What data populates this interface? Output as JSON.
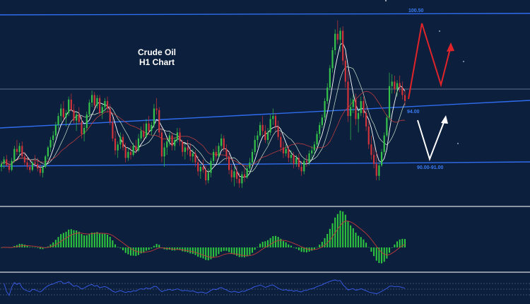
{
  "colors": {
    "background": "#0c1f3c",
    "bull_candle": "#35c24a",
    "bear_candle": "#d0343a",
    "trendline": "#2f6df0",
    "level_label": "#3a7cf5",
    "projection_bull": "#e0242a",
    "projection_bear": "#ffffff",
    "histogram": "#2ec93f",
    "signal_line": "#c23a3a",
    "rsi_line": "#3a5df0",
    "panel_divider": "#8a94a3",
    "title": "#ffffff"
  },
  "chart_data": {
    "type": "candlestick",
    "title": "Crude Oil",
    "subtitle": "H1 Chart",
    "price_levels": [
      {
        "name": "resistance",
        "label": "100.50",
        "value": 100.5
      },
      {
        "name": "trendline",
        "label": "94.00",
        "value": 94.0
      },
      {
        "name": "support",
        "label": "90.00-91.00",
        "value": 90.5
      }
    ],
    "projections": [
      {
        "name": "bullish-path",
        "color": "red"
      },
      {
        "name": "bearish-path",
        "color": "white"
      }
    ],
    "indicators": [
      {
        "type": "histogram",
        "name": "MACD"
      },
      {
        "type": "line",
        "name": "RSI"
      }
    ],
    "candles": [
      [
        91.2,
        91.6,
        90.9,
        91.4
      ],
      [
        91.4,
        91.9,
        91.1,
        91.7
      ],
      [
        91.7,
        92.0,
        91.2,
        91.3
      ],
      [
        91.3,
        91.6,
        90.8,
        91.0
      ],
      [
        91.0,
        91.8,
        90.9,
        91.6
      ],
      [
        91.6,
        92.6,
        91.5,
        92.4
      ],
      [
        92.4,
        93.0,
        92.0,
        92.2
      ],
      [
        92.2,
        92.8,
        91.9,
        92.6
      ],
      [
        92.6,
        92.9,
        91.8,
        91.9
      ],
      [
        91.9,
        92.2,
        91.3,
        91.5
      ],
      [
        91.5,
        91.9,
        91.0,
        91.2
      ],
      [
        91.2,
        91.5,
        90.8,
        91.0
      ],
      [
        91.0,
        91.6,
        90.9,
        91.5
      ],
      [
        91.5,
        92.0,
        91.2,
        91.4
      ],
      [
        91.4,
        91.8,
        90.9,
        91.1
      ],
      [
        91.1,
        91.4,
        90.6,
        90.8
      ],
      [
        90.8,
        91.3,
        90.5,
        91.2
      ],
      [
        91.2,
        92.0,
        91.1,
        91.9
      ],
      [
        91.9,
        92.6,
        91.7,
        92.5
      ],
      [
        92.5,
        93.2,
        92.2,
        93.0
      ],
      [
        93.0,
        93.6,
        92.6,
        93.3
      ],
      [
        93.3,
        94.2,
        93.1,
        94.0
      ],
      [
        94.0,
        94.8,
        93.7,
        94.6
      ],
      [
        94.6,
        95.4,
        94.2,
        95.1
      ],
      [
        95.1,
        95.6,
        94.3,
        94.5
      ],
      [
        94.5,
        95.0,
        93.9,
        94.8
      ],
      [
        94.8,
        95.9,
        94.6,
        95.7
      ],
      [
        95.7,
        96.1,
        94.9,
        95.0
      ],
      [
        95.0,
        95.4,
        94.1,
        94.3
      ],
      [
        94.3,
        94.9,
        93.6,
        94.7
      ],
      [
        94.7,
        95.2,
        94.0,
        94.2
      ],
      [
        94.2,
        94.6,
        93.1,
        93.4
      ],
      [
        93.4,
        94.0,
        92.9,
        93.8
      ],
      [
        93.8,
        94.9,
        93.6,
        94.7
      ],
      [
        94.7,
        95.7,
        94.5,
        95.5
      ],
      [
        95.5,
        96.3,
        95.2,
        96.0
      ],
      [
        96.0,
        96.2,
        95.1,
        95.3
      ],
      [
        95.3,
        96.0,
        95.1,
        95.8
      ],
      [
        95.8,
        96.0,
        94.6,
        94.8
      ],
      [
        94.8,
        95.4,
        94.4,
        95.2
      ],
      [
        95.2,
        95.8,
        94.9,
        95.6
      ],
      [
        95.6,
        95.9,
        94.8,
        95.1
      ],
      [
        95.1,
        95.4,
        94.0,
        94.2
      ],
      [
        94.2,
        94.5,
        92.9,
        93.1
      ],
      [
        93.1,
        93.6,
        92.0,
        92.3
      ],
      [
        92.3,
        92.9,
        91.8,
        92.7
      ],
      [
        92.7,
        93.5,
        92.4,
        93.2
      ],
      [
        93.2,
        93.4,
        92.3,
        92.5
      ],
      [
        92.5,
        92.8,
        91.5,
        91.8
      ],
      [
        91.8,
        92.5,
        91.6,
        92.2
      ],
      [
        92.2,
        92.6,
        91.7,
        92.0
      ],
      [
        92.0,
        92.8,
        91.9,
        92.6
      ],
      [
        92.6,
        93.0,
        92.1,
        92.3
      ],
      [
        92.3,
        93.4,
        92.2,
        93.1
      ],
      [
        93.1,
        93.9,
        92.9,
        93.6
      ],
      [
        93.6,
        94.1,
        93.0,
        93.2
      ],
      [
        93.2,
        94.4,
        93.1,
        94.1
      ],
      [
        94.1,
        94.6,
        93.4,
        93.6
      ],
      [
        93.6,
        94.2,
        93.3,
        94.0
      ],
      [
        94.0,
        95.4,
        93.8,
        95.1
      ],
      [
        95.1,
        95.8,
        94.7,
        95.0
      ],
      [
        95.0,
        95.2,
        93.2,
        93.5
      ],
      [
        93.5,
        93.8,
        91.5,
        91.9
      ],
      [
        91.9,
        92.8,
        91.2,
        92.5
      ],
      [
        92.5,
        93.1,
        92.0,
        92.9
      ],
      [
        92.9,
        93.5,
        92.6,
        93.3
      ],
      [
        93.3,
        93.5,
        92.3,
        92.6
      ],
      [
        92.6,
        93.2,
        92.3,
        93.0
      ],
      [
        93.0,
        93.8,
        92.8,
        93.5
      ],
      [
        93.5,
        93.8,
        92.6,
        92.9
      ],
      [
        92.9,
        93.0,
        91.9,
        92.2
      ],
      [
        92.2,
        92.7,
        91.7,
        92.5
      ],
      [
        92.5,
        93.0,
        92.0,
        92.3
      ],
      [
        92.3,
        92.8,
        91.6,
        91.9
      ],
      [
        91.9,
        92.4,
        91.5,
        92.1
      ],
      [
        92.1,
        92.3,
        91.2,
        91.5
      ],
      [
        91.5,
        91.9,
        90.6,
        90.9
      ],
      [
        90.9,
        91.4,
        90.4,
        91.2
      ],
      [
        91.2,
        91.7,
        90.8,
        91.0
      ],
      [
        91.0,
        91.3,
        90.0,
        90.3
      ],
      [
        90.3,
        91.1,
        90.1,
        90.8
      ],
      [
        90.8,
        91.8,
        90.5,
        91.6
      ],
      [
        91.6,
        92.4,
        91.4,
        92.2
      ],
      [
        92.2,
        92.6,
        91.6,
        91.9
      ],
      [
        91.9,
        92.8,
        91.8,
        92.6
      ],
      [
        92.6,
        93.4,
        92.3,
        93.1
      ],
      [
        93.1,
        93.3,
        92.2,
        92.4
      ],
      [
        92.4,
        92.7,
        91.6,
        91.9
      ],
      [
        91.9,
        92.2,
        90.7,
        91.0
      ],
      [
        91.0,
        91.4,
        90.2,
        90.5
      ],
      [
        90.5,
        91.2,
        89.9,
        90.9
      ],
      [
        90.9,
        91.3,
        90.1,
        90.4
      ],
      [
        90.4,
        90.8,
        89.8,
        90.1
      ],
      [
        90.1,
        90.9,
        89.8,
        90.7
      ],
      [
        90.7,
        91.2,
        90.2,
        90.5
      ],
      [
        90.5,
        91.3,
        90.4,
        91.1
      ],
      [
        91.1,
        91.8,
        90.8,
        91.5
      ],
      [
        91.5,
        92.4,
        91.3,
        92.2
      ],
      [
        92.2,
        93.3,
        92.0,
        93.0
      ],
      [
        93.0,
        93.6,
        92.5,
        93.3
      ],
      [
        93.3,
        94.2,
        93.2,
        94.0
      ],
      [
        94.0,
        94.6,
        93.3,
        93.6
      ],
      [
        93.6,
        94.0,
        92.8,
        93.0
      ],
      [
        93.0,
        93.8,
        92.7,
        93.5
      ],
      [
        93.5,
        94.7,
        93.3,
        94.4
      ],
      [
        94.4,
        95.1,
        94.0,
        94.6
      ],
      [
        94.6,
        94.8,
        93.6,
        93.9
      ],
      [
        93.9,
        94.3,
        93.0,
        93.2
      ],
      [
        93.2,
        93.5,
        92.2,
        92.5
      ],
      [
        92.5,
        92.9,
        91.8,
        92.1
      ],
      [
        92.1,
        92.7,
        91.9,
        92.4
      ],
      [
        92.4,
        92.6,
        91.5,
        91.8
      ],
      [
        91.8,
        92.3,
        91.4,
        92.0
      ],
      [
        92.0,
        92.2,
        91.1,
        91.4
      ],
      [
        91.4,
        92.0,
        91.2,
        91.8
      ],
      [
        91.8,
        92.1,
        91.0,
        91.2
      ],
      [
        91.2,
        91.6,
        90.6,
        90.9
      ],
      [
        90.9,
        91.8,
        90.7,
        91.6
      ],
      [
        91.6,
        92.0,
        91.2,
        91.5
      ],
      [
        91.5,
        92.3,
        91.3,
        92.1
      ],
      [
        92.1,
        92.6,
        91.7,
        92.3
      ],
      [
        92.3,
        92.9,
        92.0,
        92.7
      ],
      [
        92.7,
        93.6,
        92.5,
        93.4
      ],
      [
        93.4,
        94.2,
        93.1,
        94.0
      ],
      [
        94.0,
        94.7,
        93.8,
        94.5
      ],
      [
        94.5,
        95.8,
        94.3,
        95.6
      ],
      [
        95.6,
        96.8,
        95.4,
        96.5
      ],
      [
        96.5,
        98.0,
        96.3,
        97.8
      ],
      [
        97.8,
        99.2,
        97.5,
        99.0
      ],
      [
        99.0,
        100.4,
        98.7,
        100.1
      ],
      [
        100.1,
        101.0,
        99.4,
        99.7
      ],
      [
        99.7,
        100.5,
        98.9,
        100.3
      ],
      [
        100.3,
        100.6,
        98.0,
        98.3
      ],
      [
        98.3,
        98.8,
        96.5,
        96.9
      ],
      [
        96.9,
        97.7,
        94.2,
        94.6
      ],
      [
        94.6,
        95.8,
        93.0,
        95.2
      ],
      [
        95.2,
        96.0,
        94.8,
        95.7
      ],
      [
        95.7,
        96.1,
        94.0,
        94.4
      ],
      [
        94.4,
        95.1,
        93.5,
        94.8
      ],
      [
        94.8,
        95.9,
        94.6,
        95.6
      ],
      [
        95.6,
        95.9,
        94.5,
        94.8
      ],
      [
        94.8,
        95.2,
        93.6,
        93.9
      ],
      [
        93.9,
        94.3,
        92.4,
        92.7
      ],
      [
        92.7,
        93.3,
        91.7,
        92.0
      ],
      [
        92.0,
        92.5,
        91.1,
        91.4
      ],
      [
        91.4,
        92.2,
        90.3,
        90.6
      ],
      [
        90.6,
        91.5,
        90.3,
        91.3
      ],
      [
        91.3,
        92.4,
        91.2,
        92.2
      ],
      [
        92.2,
        93.5,
        92.0,
        93.3
      ],
      [
        93.3,
        94.7,
        93.2,
        94.5
      ],
      [
        94.5,
        97.5,
        94.3,
        96.6
      ],
      [
        96.6,
        97.4,
        96.1,
        96.9
      ],
      [
        96.9,
        97.3,
        96.1,
        96.4
      ],
      [
        96.4,
        97.0,
        95.9,
        96.8
      ],
      [
        96.8,
        97.3,
        96.2,
        96.5
      ],
      [
        96.5,
        96.9,
        95.7,
        96.0
      ],
      [
        96.0,
        96.3,
        95.3,
        95.6
      ]
    ]
  }
}
